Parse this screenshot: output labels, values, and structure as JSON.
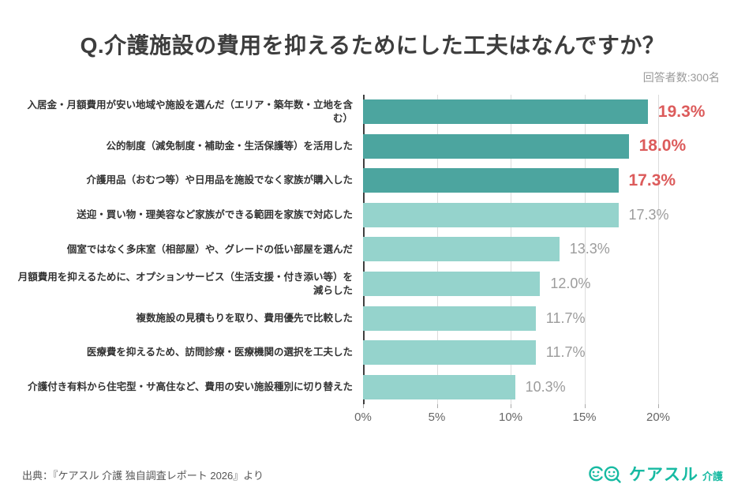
{
  "header": {
    "title": "Q.介護施設の費用を抑えるためにした工夫はなんですか？",
    "respondents_note": "回答者数:300名"
  },
  "chart_data": {
    "type": "bar",
    "orientation": "horizontal",
    "title": "Q.介護施設の費用を抑えるためにした工夫はなんですか？",
    "categories": [
      "入居金・月額費用が安い地域や施設を選んだ（エリア・築年数・立地を含む）",
      "公的制度（減免制度・補助金・生活保護等）を活用した",
      "介護用品（おむつ等）や日用品を施設でなく家族が購入した",
      "送迎・買い物・理美容など家族ができる範囲を家族で対応した",
      "個室ではなく多床室（相部屋）や、グレードの低い部屋を選んだ",
      "月額費用を抑えるために、オプションサービス（生活支援・付き添い等）を減らした",
      "複数施設の見積もりを取り、費用優先で比較した",
      "医療費を抑えるため、訪問診療・医療機関の選択を工夫した",
      "介護付き有料から住宅型・サ高住など、費用の安い施設種別に切り替えた"
    ],
    "values": [
      19.3,
      18.0,
      17.3,
      17.3,
      13.3,
      12.0,
      11.7,
      11.7,
      10.3
    ],
    "value_labels": [
      "19.3%",
      "18.0%",
      "17.3%",
      "17.3%",
      "13.3%",
      "12.0%",
      "11.7%",
      "11.7%",
      "10.3%"
    ],
    "highlight_count": 3,
    "xlabel": "",
    "ylabel": "",
    "x_ticks": [
      0,
      5,
      10,
      15,
      20
    ],
    "x_tick_labels": [
      "0%",
      "5%",
      "10%",
      "15%",
      "20%"
    ],
    "xlim": [
      0,
      23.5
    ],
    "grid": true,
    "legend": "none",
    "colors": {
      "bar_highlight": "#4CA59F",
      "bar_normal": "#95D3CC",
      "value_highlight": "#DC5B5B",
      "value_normal": "#9C9C9C"
    }
  },
  "footer": {
    "source": "出典：『ケアスル 介護 独自調査レポート 2026』より",
    "logo": {
      "brand": "ケアスル",
      "suffix": "介護",
      "color": "#17BAA2",
      "icon": "two-smiley-faces-with-magnifier"
    }
  }
}
